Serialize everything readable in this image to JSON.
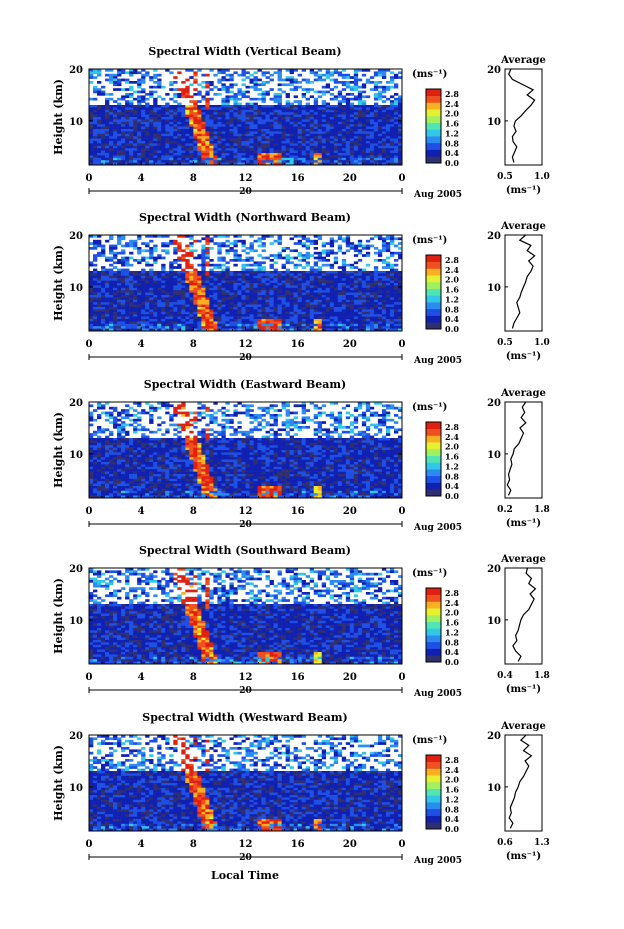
{
  "figure": {
    "xlabel": "Local Time",
    "date_day": "20",
    "date_label": "Aug 2005",
    "cbar_unit": "(ms⁻¹)",
    "cbar_ticks": [
      "0.0",
      "0.4",
      "0.8",
      "1.2",
      "1.6",
      "2.0",
      "2.4",
      "2.8"
    ],
    "avg_title": "Average",
    "avg_xunit": "(ms⁻¹)",
    "colors": [
      "#303070",
      "#1020b0",
      "#1e50e6",
      "#2a8cf0",
      "#30c8e6",
      "#50e6b4",
      "#a0f060",
      "#e6f030",
      "#f8b020",
      "#f05020",
      "#e02010"
    ]
  },
  "chart_data": [
    {
      "type": "heatmap",
      "title": "Spectral Width (Vertical Beam)",
      "ylabel": "Height (km)",
      "xlim": [
        0,
        24
      ],
      "ylim": [
        1.5,
        20
      ],
      "xticks": [
        "0",
        "4",
        "8",
        "12",
        "16",
        "20",
        "0"
      ],
      "yticks": [
        "10",
        "20"
      ],
      "avg": {
        "title": "Average",
        "xlim": [
          0.5,
          1.0
        ],
        "xticks": [
          "0.5",
          "1.0"
        ],
        "yticks": [
          "10",
          "20"
        ],
        "heights": [
          2,
          3,
          4,
          5,
          6,
          7,
          8,
          9,
          10,
          11,
          12,
          13,
          14,
          15,
          16,
          17,
          18,
          19,
          20
        ],
        "values": [
          0.62,
          0.6,
          0.63,
          0.66,
          0.61,
          0.6,
          0.65,
          0.62,
          0.64,
          0.72,
          0.78,
          0.85,
          0.9,
          0.8,
          0.88,
          0.74,
          0.6,
          0.55,
          0.58
        ]
      }
    },
    {
      "type": "heatmap",
      "title": "Spectral Width (Northward Beam)",
      "ylabel": "Height (km)",
      "xlim": [
        0,
        24
      ],
      "ylim": [
        1.5,
        20
      ],
      "xticks": [
        "0",
        "4",
        "8",
        "12",
        "16",
        "20",
        "0"
      ],
      "yticks": [
        "10",
        "20"
      ],
      "avg": {
        "title": "Average",
        "xlim": [
          0.5,
          1.0
        ],
        "xticks": [
          "0.5",
          "1.0"
        ],
        "yticks": [
          "10",
          "20"
        ],
        "heights": [
          2,
          3,
          4,
          5,
          6,
          7,
          8,
          9,
          10,
          11,
          12,
          13,
          14,
          15,
          16,
          17,
          18,
          19,
          20
        ],
        "values": [
          0.6,
          0.62,
          0.66,
          0.7,
          0.68,
          0.66,
          0.7,
          0.72,
          0.75,
          0.78,
          0.8,
          0.85,
          0.88,
          0.82,
          0.9,
          0.8,
          0.85,
          0.7,
          0.78
        ]
      }
    },
    {
      "type": "heatmap",
      "title": "Spectral Width (Eastward Beam)",
      "ylabel": "Height (km)",
      "xlim": [
        0,
        24
      ],
      "ylim": [
        1.5,
        20
      ],
      "xticks": [
        "0",
        "4",
        "8",
        "12",
        "16",
        "20",
        "0"
      ],
      "yticks": [
        "10",
        "20"
      ],
      "avg": {
        "title": "Average",
        "xlim": [
          0.2,
          1.8
        ],
        "xticks": [
          "0.2",
          "1.8"
        ],
        "yticks": [
          "10",
          "20"
        ],
        "heights": [
          2,
          3,
          4,
          5,
          6,
          7,
          8,
          9,
          10,
          11,
          12,
          13,
          14,
          15,
          16,
          17,
          18,
          19,
          20
        ],
        "values": [
          0.35,
          0.45,
          0.3,
          0.4,
          0.35,
          0.42,
          0.5,
          0.45,
          0.55,
          0.6,
          0.8,
          0.9,
          1.0,
          0.85,
          1.1,
          0.9,
          1.05,
          0.95,
          1.1
        ]
      }
    },
    {
      "type": "heatmap",
      "title": "Spectral Width (Southward Beam)",
      "ylabel": "Height (km)",
      "xlim": [
        0,
        24
      ],
      "ylim": [
        1.5,
        20
      ],
      "xticks": [
        "0",
        "4",
        "8",
        "12",
        "16",
        "20",
        "0"
      ],
      "yticks": [
        "10",
        "20"
      ],
      "avg": {
        "title": "Average",
        "xlim": [
          0.4,
          1.8
        ],
        "xticks": [
          "0.4",
          "1.8"
        ],
        "yticks": [
          "10",
          "20"
        ],
        "heights": [
          2,
          3,
          4,
          5,
          6,
          7,
          8,
          9,
          10,
          11,
          12,
          13,
          14,
          15,
          16,
          17,
          18,
          19,
          20
        ],
        "values": [
          0.9,
          1.0,
          0.8,
          0.7,
          0.85,
          0.8,
          0.9,
          0.95,
          1.0,
          1.1,
          1.3,
          1.4,
          1.5,
          1.35,
          1.55,
          1.3,
          1.4,
          1.2,
          1.25
        ]
      }
    },
    {
      "type": "heatmap",
      "title": "Spectral Width (Westward Beam)",
      "ylabel": "Height (km)",
      "xlim": [
        0,
        24
      ],
      "ylim": [
        1.5,
        20
      ],
      "xticks": [
        "0",
        "4",
        "8",
        "12",
        "16",
        "20",
        "0"
      ],
      "yticks": [
        "10",
        "20"
      ],
      "avg": {
        "title": "Average",
        "xlim": [
          0.6,
          1.3
        ],
        "xticks": [
          "0.6",
          "1.3"
        ],
        "yticks": [
          "10",
          "20"
        ],
        "heights": [
          2,
          3,
          4,
          5,
          6,
          7,
          8,
          9,
          10,
          11,
          12,
          13,
          14,
          15,
          16,
          17,
          18,
          19,
          20
        ],
        "values": [
          0.7,
          0.75,
          0.68,
          0.72,
          0.7,
          0.74,
          0.78,
          0.8,
          0.85,
          0.88,
          0.95,
          1.0,
          1.05,
          0.98,
          1.1,
          0.95,
          1.05,
          0.9,
          1.0
        ]
      }
    }
  ]
}
